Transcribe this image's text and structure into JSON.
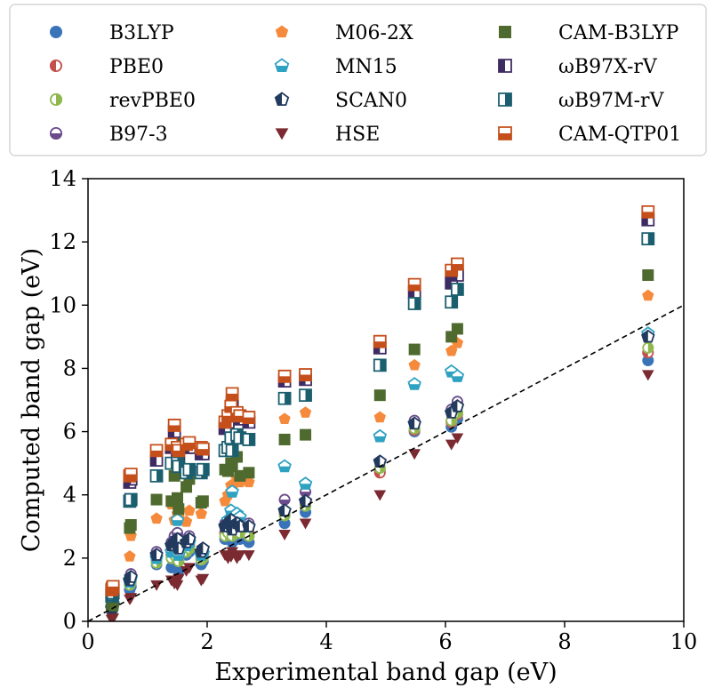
{
  "chart_data": {
    "type": "scatter",
    "title": "",
    "xlabel": "Experimental band gap (eV)",
    "ylabel": "Computed band gap (eV)",
    "xlim": [
      0,
      10
    ],
    "ylim": [
      0,
      14
    ],
    "xticks": [
      "0",
      "2",
      "4",
      "6",
      "8",
      "10"
    ],
    "yticks": [
      "0",
      "2",
      "4",
      "6",
      "8",
      "10",
      "12",
      "14"
    ],
    "legend_position": "top",
    "reference_line": {
      "style": "dashed",
      "color": "#000000",
      "x": [
        0,
        10
      ],
      "y": [
        0,
        10
      ]
    },
    "x": [
      0.4,
      0.41,
      0.42,
      0.7,
      0.72,
      1.15,
      1.4,
      1.45,
      1.5,
      1.52,
      1.65,
      1.7,
      1.9,
      1.93,
      2.3,
      2.35,
      2.4,
      2.42,
      2.5,
      2.55,
      2.7,
      3.3,
      3.65,
      4.9,
      5.48,
      6.1,
      6.2,
      9.4
    ],
    "series": [
      {
        "name": "B3LYP",
        "marker": "circle",
        "fill": "full",
        "color": "#3a74b8",
        "values": [
          0.3,
          0.35,
          0.4,
          1.0,
          1.1,
          1.8,
          1.7,
          1.8,
          1.9,
          1.6,
          2.1,
          2.2,
          1.8,
          1.9,
          2.6,
          2.7,
          2.8,
          2.5,
          2.7,
          2.6,
          2.5,
          3.1,
          3.45,
          4.75,
          6.0,
          6.15,
          6.4,
          8.25
        ]
      },
      {
        "name": "PBE0",
        "marker": "circle",
        "fill": "left",
        "color": "#c2504b",
        "values": [
          0.4,
          0.45,
          0.5,
          1.2,
          1.3,
          1.9,
          2.1,
          2.2,
          2.3,
          2.0,
          2.3,
          2.4,
          2.0,
          2.1,
          2.8,
          2.9,
          3.0,
          2.8,
          3.0,
          2.9,
          2.8,
          3.4,
          3.7,
          4.7,
          6.05,
          6.3,
          6.55,
          8.5
        ]
      },
      {
        "name": "revPBE0",
        "marker": "circle",
        "fill": "right",
        "color": "#8fb84c",
        "values": [
          0.35,
          0.4,
          0.45,
          1.15,
          1.25,
          1.85,
          2.0,
          2.1,
          2.2,
          1.9,
          2.2,
          2.3,
          1.95,
          2.0,
          2.7,
          2.8,
          2.9,
          2.7,
          2.9,
          2.8,
          2.7,
          3.35,
          3.65,
          4.85,
          6.1,
          6.35,
          6.6,
          8.65
        ]
      },
      {
        "name": "B97-3",
        "marker": "circle",
        "fill": "bottom",
        "color": "#6a4c8c",
        "values": [
          0.5,
          0.55,
          0.6,
          1.4,
          1.5,
          2.2,
          2.5,
          2.7,
          2.8,
          2.4,
          2.6,
          2.7,
          2.2,
          2.3,
          3.1,
          3.2,
          3.3,
          3.0,
          3.2,
          3.1,
          3.1,
          3.85,
          4.1,
          5.05,
          6.35,
          6.7,
          6.95,
          9.05
        ]
      },
      {
        "name": "M06-2X",
        "marker": "pentagon",
        "fill": "full",
        "color": "#f58a3c",
        "values": [
          0.55,
          0.6,
          0.7,
          2.05,
          2.7,
          3.25,
          3.7,
          3.2,
          3.4,
          3.3,
          3.15,
          3.5,
          3.4,
          3.75,
          3.8,
          4.0,
          4.3,
          4.2,
          4.5,
          4.4,
          4.4,
          6.4,
          6.6,
          6.45,
          8.1,
          8.55,
          8.8,
          10.3
        ]
      },
      {
        "name": "MN15",
        "marker": "pentagon",
        "fill": "bottom",
        "color": "#2fa2c2",
        "values": [
          0.45,
          0.5,
          0.55,
          1.25,
          1.35,
          2.0,
          2.2,
          2.3,
          3.2,
          2.1,
          2.4,
          2.5,
          2.1,
          2.15,
          3.0,
          3.2,
          3.5,
          4.1,
          3.4,
          3.3,
          3.0,
          4.9,
          4.35,
          5.85,
          7.5,
          7.9,
          7.75,
          9.1
        ]
      },
      {
        "name": "SCAN0",
        "marker": "pentagon",
        "fill": "left",
        "color": "#223a5e",
        "values": [
          0.4,
          0.45,
          0.5,
          1.3,
          1.4,
          2.1,
          2.4,
          2.5,
          2.6,
          2.3,
          2.5,
          2.6,
          2.2,
          2.3,
          3.0,
          3.1,
          3.2,
          2.9,
          3.1,
          3.0,
          3.0,
          3.5,
          3.8,
          5.05,
          6.25,
          6.6,
          6.8,
          9.0
        ]
      },
      {
        "name": "HSE",
        "marker": "triangle-down",
        "fill": "full",
        "color": "#7a2a30",
        "values": [
          0.05,
          0.08,
          0.1,
          0.7,
          0.75,
          1.15,
          1.3,
          1.2,
          1.15,
          1.35,
          1.6,
          1.7,
          1.3,
          1.35,
          2.1,
          2.0,
          2.05,
          2.2,
          2.0,
          2.1,
          2.1,
          2.75,
          3.1,
          4.0,
          5.3,
          5.6,
          5.8,
          7.8
        ]
      },
      {
        "name": "CAM-B3LYP",
        "marker": "square",
        "fill": "full",
        "color": "#4e6a2e",
        "values": [
          0.5,
          0.55,
          0.6,
          2.95,
          3.05,
          3.85,
          3.8,
          4.6,
          3.9,
          3.55,
          4.25,
          4.5,
          3.75,
          3.8,
          4.8,
          4.75,
          5.0,
          4.9,
          5.2,
          4.6,
          4.7,
          5.75,
          5.9,
          7.15,
          8.6,
          9.0,
          9.25,
          10.95
        ]
      },
      {
        "name": "ωB97X-rV",
        "marker": "square",
        "fill": "left",
        "color": "#3f2b63",
        "values": [
          0.9,
          0.95,
          1.0,
          4.4,
          4.5,
          5.1,
          5.5,
          6.0,
          5.4,
          5.2,
          5.5,
          5.5,
          5.3,
          5.3,
          6.1,
          6.3,
          6.6,
          6.9,
          6.5,
          6.4,
          6.3,
          7.6,
          7.65,
          8.65,
          10.4,
          10.7,
          10.95,
          12.7
        ]
      },
      {
        "name": "ωB97M-rV",
        "marker": "square",
        "fill": "right",
        "color": "#1b5e6e",
        "values": [
          0.8,
          0.85,
          0.9,
          3.8,
          3.85,
          4.6,
          5.0,
          5.6,
          5.0,
          4.9,
          4.7,
          4.8,
          4.7,
          4.8,
          5.4,
          5.5,
          5.8,
          5.4,
          5.9,
          5.8,
          5.75,
          7.05,
          7.15,
          8.1,
          10.05,
          10.1,
          10.5,
          12.1
        ]
      },
      {
        "name": "CAM-QTP01",
        "marker": "square",
        "fill": "bottom",
        "color": "#c44f1b",
        "values": [
          1.0,
          1.05,
          1.1,
          4.6,
          4.65,
          5.4,
          5.6,
          6.2,
          5.5,
          5.4,
          5.6,
          5.65,
          5.5,
          5.45,
          6.3,
          6.5,
          6.8,
          7.2,
          6.6,
          6.5,
          6.45,
          7.75,
          7.8,
          8.85,
          10.65,
          11.1,
          11.3,
          12.95
        ]
      }
    ]
  }
}
